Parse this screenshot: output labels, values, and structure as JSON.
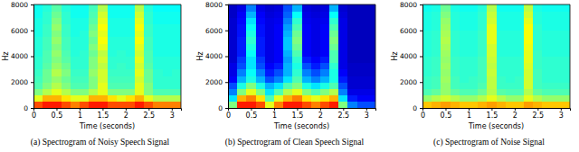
{
  "chart_data": [
    {
      "type": "heatmap",
      "caption": "(a) Spectrogram of Noisy Speech Signal",
      "xlabel": "Time (seconds)",
      "ylabel": "Hz",
      "xlim": [
        0,
        3.2
      ],
      "ylim": [
        0,
        8000
      ],
      "xticks": [
        0,
        0.5,
        1,
        1.5,
        2,
        2.5,
        3
      ],
      "yticks": [
        0,
        2000,
        4000,
        6000,
        8000
      ],
      "zlim": [
        0,
        1
      ],
      "x": [
        0.1,
        0.3,
        0.5,
        0.7,
        0.9,
        1.1,
        1.3,
        1.5,
        1.7,
        1.9,
        2.1,
        2.3,
        2.5,
        2.7,
        2.9,
        3.1
      ],
      "y": [
        250,
        750,
        1250,
        1750,
        2250,
        2750,
        3250,
        3750,
        4250,
        4750,
        5250,
        5750,
        6250,
        6750,
        7250,
        7750
      ],
      "values": [
        [
          0.8,
          0.85,
          0.85,
          0.8,
          0.75,
          0.8,
          0.85,
          0.85,
          0.8,
          0.8,
          0.8,
          0.85,
          0.8,
          0.75,
          0.75,
          0.75
        ],
        [
          0.6,
          0.7,
          0.7,
          0.65,
          0.6,
          0.6,
          0.7,
          0.7,
          0.65,
          0.6,
          0.65,
          0.7,
          0.6,
          0.55,
          0.55,
          0.55
        ],
        [
          0.5,
          0.55,
          0.6,
          0.55,
          0.5,
          0.5,
          0.55,
          0.6,
          0.5,
          0.5,
          0.5,
          0.6,
          0.5,
          0.45,
          0.45,
          0.45
        ],
        [
          0.45,
          0.5,
          0.55,
          0.5,
          0.45,
          0.45,
          0.5,
          0.6,
          0.45,
          0.45,
          0.45,
          0.6,
          0.5,
          0.42,
          0.42,
          0.42
        ],
        [
          0.44,
          0.48,
          0.52,
          0.48,
          0.44,
          0.44,
          0.5,
          0.58,
          0.44,
          0.44,
          0.44,
          0.58,
          0.48,
          0.42,
          0.42,
          0.42
        ],
        [
          0.43,
          0.48,
          0.55,
          0.5,
          0.43,
          0.43,
          0.52,
          0.58,
          0.43,
          0.43,
          0.43,
          0.6,
          0.48,
          0.42,
          0.41,
          0.42
        ],
        [
          0.42,
          0.46,
          0.52,
          0.48,
          0.42,
          0.42,
          0.5,
          0.56,
          0.42,
          0.43,
          0.42,
          0.58,
          0.46,
          0.41,
          0.41,
          0.41
        ],
        [
          0.42,
          0.45,
          0.5,
          0.46,
          0.42,
          0.42,
          0.5,
          0.58,
          0.42,
          0.42,
          0.42,
          0.6,
          0.45,
          0.41,
          0.41,
          0.41
        ],
        [
          0.41,
          0.45,
          0.52,
          0.45,
          0.41,
          0.42,
          0.48,
          0.56,
          0.41,
          0.42,
          0.41,
          0.58,
          0.45,
          0.4,
          0.4,
          0.4
        ],
        [
          0.41,
          0.44,
          0.5,
          0.44,
          0.41,
          0.41,
          0.5,
          0.6,
          0.41,
          0.41,
          0.41,
          0.6,
          0.44,
          0.4,
          0.4,
          0.4
        ],
        [
          0.41,
          0.44,
          0.52,
          0.44,
          0.41,
          0.41,
          0.48,
          0.62,
          0.41,
          0.41,
          0.41,
          0.62,
          0.44,
          0.4,
          0.4,
          0.4
        ],
        [
          0.4,
          0.43,
          0.5,
          0.43,
          0.4,
          0.41,
          0.5,
          0.6,
          0.4,
          0.4,
          0.4,
          0.6,
          0.43,
          0.4,
          0.4,
          0.4
        ],
        [
          0.4,
          0.43,
          0.52,
          0.43,
          0.4,
          0.4,
          0.48,
          0.62,
          0.4,
          0.4,
          0.4,
          0.62,
          0.43,
          0.4,
          0.4,
          0.4
        ],
        [
          0.4,
          0.42,
          0.5,
          0.42,
          0.4,
          0.4,
          0.46,
          0.6,
          0.4,
          0.4,
          0.4,
          0.6,
          0.42,
          0.39,
          0.39,
          0.39
        ],
        [
          0.39,
          0.42,
          0.48,
          0.42,
          0.39,
          0.39,
          0.45,
          0.58,
          0.39,
          0.39,
          0.39,
          0.58,
          0.42,
          0.39,
          0.39,
          0.39
        ],
        [
          0.39,
          0.41,
          0.46,
          0.41,
          0.39,
          0.39,
          0.44,
          0.55,
          0.39,
          0.39,
          0.39,
          0.55,
          0.41,
          0.38,
          0.38,
          0.38
        ]
      ]
    },
    {
      "type": "heatmap",
      "caption": "(b) Spectrogram of Clean Speech Signal",
      "xlabel": "Time (seconds)",
      "ylabel": "Hz",
      "xlim": [
        0,
        3.2
      ],
      "ylim": [
        0,
        8000
      ],
      "xticks": [
        0,
        0.5,
        1,
        1.5,
        2,
        2.5,
        3
      ],
      "yticks": [
        0,
        2000,
        4000,
        6000,
        8000
      ],
      "zlim": [
        0,
        1
      ],
      "x": [
        0.1,
        0.3,
        0.5,
        0.7,
        0.9,
        1.1,
        1.3,
        1.5,
        1.7,
        1.9,
        2.1,
        2.3,
        2.5,
        2.7,
        2.9,
        3.1
      ],
      "y": [
        250,
        750,
        1250,
        1750,
        2250,
        2750,
        3250,
        3750,
        4250,
        4750,
        5250,
        5750,
        6250,
        6750,
        7250,
        7750
      ],
      "values": [
        [
          0.5,
          0.85,
          0.85,
          0.8,
          0.6,
          0.75,
          0.85,
          0.85,
          0.8,
          0.75,
          0.8,
          0.85,
          0.5,
          0.25,
          0.2,
          0.2
        ],
        [
          0.35,
          0.7,
          0.75,
          0.65,
          0.45,
          0.6,
          0.7,
          0.75,
          0.65,
          0.6,
          0.65,
          0.7,
          0.35,
          0.15,
          0.12,
          0.12
        ],
        [
          0.25,
          0.5,
          0.6,
          0.5,
          0.35,
          0.45,
          0.55,
          0.6,
          0.5,
          0.45,
          0.5,
          0.55,
          0.25,
          0.1,
          0.1,
          0.1
        ],
        [
          0.2,
          0.4,
          0.5,
          0.4,
          0.3,
          0.35,
          0.45,
          0.5,
          0.4,
          0.35,
          0.4,
          0.45,
          0.2,
          0.08,
          0.08,
          0.08
        ],
        [
          0.12,
          0.3,
          0.4,
          0.3,
          0.2,
          0.25,
          0.35,
          0.45,
          0.3,
          0.25,
          0.3,
          0.4,
          0.15,
          0.08,
          0.08,
          0.08
        ],
        [
          0.1,
          0.25,
          0.38,
          0.25,
          0.15,
          0.2,
          0.3,
          0.42,
          0.25,
          0.2,
          0.25,
          0.4,
          0.12,
          0.07,
          0.07,
          0.07
        ],
        [
          0.1,
          0.2,
          0.35,
          0.2,
          0.12,
          0.15,
          0.3,
          0.4,
          0.2,
          0.15,
          0.2,
          0.42,
          0.1,
          0.07,
          0.07,
          0.07
        ],
        [
          0.08,
          0.18,
          0.35,
          0.18,
          0.1,
          0.12,
          0.28,
          0.42,
          0.15,
          0.12,
          0.15,
          0.45,
          0.1,
          0.06,
          0.06,
          0.06
        ],
        [
          0.08,
          0.15,
          0.38,
          0.15,
          0.1,
          0.12,
          0.3,
          0.45,
          0.12,
          0.1,
          0.12,
          0.45,
          0.1,
          0.06,
          0.06,
          0.06
        ],
        [
          0.08,
          0.15,
          0.4,
          0.15,
          0.1,
          0.12,
          0.32,
          0.48,
          0.12,
          0.1,
          0.12,
          0.48,
          0.1,
          0.06,
          0.06,
          0.06
        ],
        [
          0.08,
          0.15,
          0.42,
          0.15,
          0.1,
          0.12,
          0.32,
          0.5,
          0.12,
          0.1,
          0.12,
          0.5,
          0.1,
          0.06,
          0.06,
          0.06
        ],
        [
          0.08,
          0.14,
          0.4,
          0.14,
          0.1,
          0.12,
          0.3,
          0.48,
          0.12,
          0.1,
          0.12,
          0.48,
          0.1,
          0.06,
          0.06,
          0.06
        ],
        [
          0.08,
          0.14,
          0.38,
          0.14,
          0.1,
          0.12,
          0.28,
          0.45,
          0.12,
          0.1,
          0.12,
          0.45,
          0.1,
          0.06,
          0.06,
          0.06
        ],
        [
          0.08,
          0.13,
          0.35,
          0.13,
          0.1,
          0.11,
          0.25,
          0.42,
          0.11,
          0.1,
          0.11,
          0.42,
          0.1,
          0.06,
          0.06,
          0.06
        ],
        [
          0.07,
          0.12,
          0.3,
          0.12,
          0.09,
          0.1,
          0.22,
          0.38,
          0.1,
          0.09,
          0.1,
          0.38,
          0.09,
          0.06,
          0.06,
          0.06
        ],
        [
          0.07,
          0.1,
          0.25,
          0.1,
          0.08,
          0.09,
          0.2,
          0.3,
          0.09,
          0.08,
          0.09,
          0.3,
          0.08,
          0.06,
          0.06,
          0.06
        ]
      ]
    },
    {
      "type": "heatmap",
      "caption": "(c) Spectrogram of Noise Signal",
      "xlabel": "Time (seconds)",
      "ylabel": "Hz",
      "xlim": [
        0,
        3.2
      ],
      "ylim": [
        0,
        8000
      ],
      "xticks": [
        0,
        0.5,
        1,
        1.5,
        2,
        2.5,
        3
      ],
      "yticks": [
        0,
        2000,
        4000,
        6000,
        8000
      ],
      "zlim": [
        0,
        1
      ],
      "x": [
        0.1,
        0.3,
        0.5,
        0.7,
        0.9,
        1.1,
        1.3,
        1.5,
        1.7,
        1.9,
        2.1,
        2.3,
        2.5,
        2.7,
        2.9,
        3.1
      ],
      "y": [
        250,
        750,
        1250,
        1750,
        2250,
        2750,
        3250,
        3750,
        4250,
        4750,
        5250,
        5750,
        6250,
        6750,
        7250,
        7750
      ],
      "values": [
        [
          0.68,
          0.7,
          0.72,
          0.7,
          0.68,
          0.68,
          0.7,
          0.72,
          0.7,
          0.68,
          0.68,
          0.72,
          0.7,
          0.68,
          0.68,
          0.68
        ],
        [
          0.52,
          0.55,
          0.58,
          0.55,
          0.52,
          0.52,
          0.55,
          0.6,
          0.55,
          0.52,
          0.52,
          0.6,
          0.55,
          0.52,
          0.52,
          0.52
        ],
        [
          0.45,
          0.47,
          0.52,
          0.47,
          0.45,
          0.45,
          0.48,
          0.55,
          0.46,
          0.45,
          0.45,
          0.55,
          0.47,
          0.45,
          0.45,
          0.45
        ],
        [
          0.43,
          0.44,
          0.52,
          0.44,
          0.43,
          0.43,
          0.45,
          0.56,
          0.43,
          0.43,
          0.43,
          0.58,
          0.44,
          0.43,
          0.43,
          0.43
        ],
        [
          0.43,
          0.44,
          0.53,
          0.44,
          0.42,
          0.43,
          0.44,
          0.56,
          0.43,
          0.42,
          0.43,
          0.58,
          0.44,
          0.42,
          0.42,
          0.42
        ],
        [
          0.42,
          0.43,
          0.52,
          0.43,
          0.42,
          0.42,
          0.44,
          0.57,
          0.42,
          0.42,
          0.42,
          0.58,
          0.44,
          0.42,
          0.42,
          0.42
        ],
        [
          0.42,
          0.43,
          0.53,
          0.43,
          0.42,
          0.42,
          0.44,
          0.56,
          0.42,
          0.42,
          0.42,
          0.59,
          0.43,
          0.42,
          0.42,
          0.42
        ],
        [
          0.42,
          0.43,
          0.52,
          0.43,
          0.42,
          0.42,
          0.44,
          0.57,
          0.42,
          0.42,
          0.42,
          0.6,
          0.43,
          0.42,
          0.42,
          0.42
        ],
        [
          0.41,
          0.42,
          0.53,
          0.42,
          0.41,
          0.41,
          0.43,
          0.58,
          0.41,
          0.41,
          0.41,
          0.6,
          0.43,
          0.41,
          0.41,
          0.41
        ],
        [
          0.41,
          0.42,
          0.54,
          0.42,
          0.41,
          0.41,
          0.43,
          0.58,
          0.41,
          0.41,
          0.41,
          0.61,
          0.42,
          0.41,
          0.41,
          0.41
        ],
        [
          0.41,
          0.42,
          0.55,
          0.42,
          0.41,
          0.41,
          0.43,
          0.6,
          0.41,
          0.41,
          0.41,
          0.62,
          0.42,
          0.41,
          0.41,
          0.41
        ],
        [
          0.41,
          0.42,
          0.54,
          0.42,
          0.41,
          0.41,
          0.43,
          0.6,
          0.41,
          0.41,
          0.41,
          0.62,
          0.42,
          0.41,
          0.41,
          0.41
        ],
        [
          0.4,
          0.41,
          0.53,
          0.41,
          0.4,
          0.4,
          0.42,
          0.6,
          0.4,
          0.4,
          0.4,
          0.62,
          0.42,
          0.4,
          0.4,
          0.4
        ],
        [
          0.4,
          0.41,
          0.52,
          0.41,
          0.4,
          0.4,
          0.42,
          0.58,
          0.4,
          0.4,
          0.4,
          0.6,
          0.41,
          0.4,
          0.4,
          0.4
        ],
        [
          0.4,
          0.41,
          0.5,
          0.41,
          0.4,
          0.4,
          0.42,
          0.57,
          0.4,
          0.4,
          0.4,
          0.58,
          0.41,
          0.4,
          0.4,
          0.4
        ],
        [
          0.39,
          0.4,
          0.48,
          0.4,
          0.39,
          0.39,
          0.41,
          0.55,
          0.39,
          0.39,
          0.39,
          0.56,
          0.4,
          0.39,
          0.39,
          0.39
        ]
      ]
    }
  ]
}
